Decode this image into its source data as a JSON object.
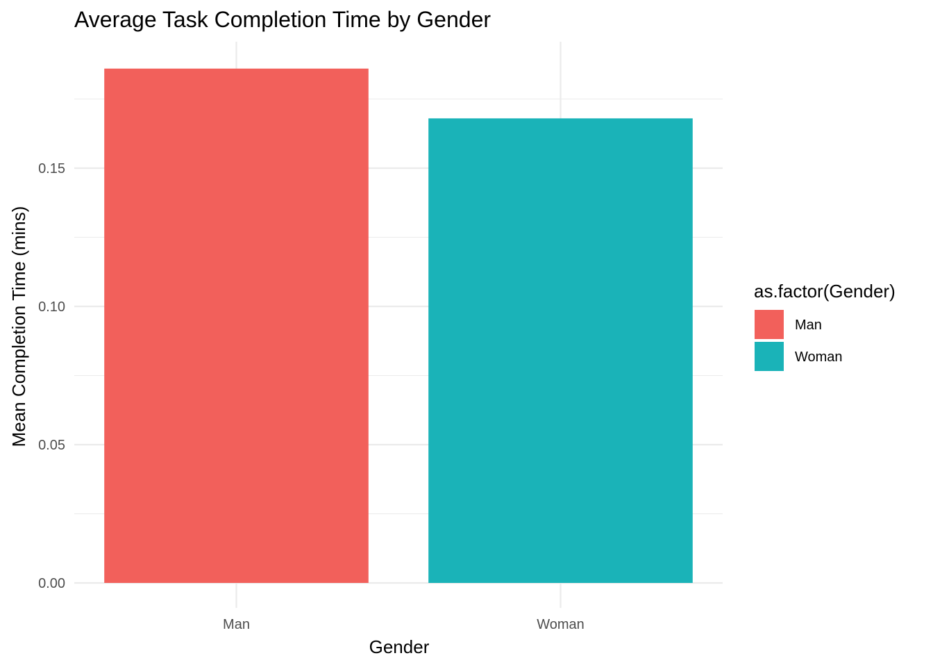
{
  "chart_data": {
    "type": "bar",
    "title": "Average Task Completion Time by Gender",
    "xlabel": "Gender",
    "ylabel": "Mean Completion Time (mins)",
    "categories": [
      "Man",
      "Woman"
    ],
    "values": [
      0.186,
      0.168
    ],
    "ylim": [
      0,
      0.19
    ],
    "yticks": [
      0.0,
      0.05,
      0.1,
      0.15
    ],
    "ytick_labels": [
      "0.00",
      "0.05",
      "0.10",
      "0.15"
    ],
    "colors": [
      "#F8766D",
      "#00BFC4"
    ],
    "bar_colors": [
      "#F2605B",
      "#1AB3B8"
    ],
    "grid": true,
    "legend": {
      "title": "as.factor(Gender)",
      "position": "right",
      "entries": [
        {
          "label": "Man",
          "color": "#F2605B"
        },
        {
          "label": "Woman",
          "color": "#1AB3B8"
        }
      ]
    }
  }
}
